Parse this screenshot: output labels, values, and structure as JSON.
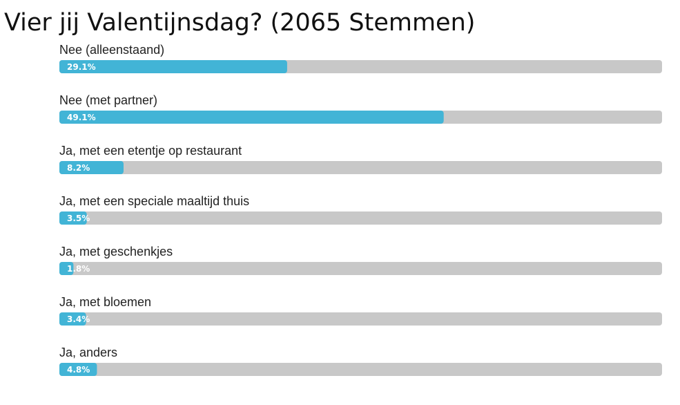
{
  "chart_data": {
    "type": "bar",
    "orientation": "horizontal",
    "title": "Vier jij Valentijnsdag? (2065 Stemmen)",
    "categories": [
      "Nee (alleenstaand)",
      "Nee (met partner)",
      "Ja, met een etentje op restaurant",
      "Ja, met een speciale maaltijd thuis",
      "Ja, met geschenkjes",
      "Ja, met bloemen",
      "Ja, anders"
    ],
    "values": [
      29.1,
      49.1,
      8.2,
      3.5,
      1.8,
      3.4,
      4.8
    ],
    "value_labels": [
      "29.1%",
      "49.1%",
      "8.2%",
      "3.5%",
      "1.8%",
      "3.4%",
      "4.8%"
    ],
    "color": "#42b4d6",
    "track_color": "#c8c8c8",
    "xlim": [
      0,
      77
    ]
  }
}
